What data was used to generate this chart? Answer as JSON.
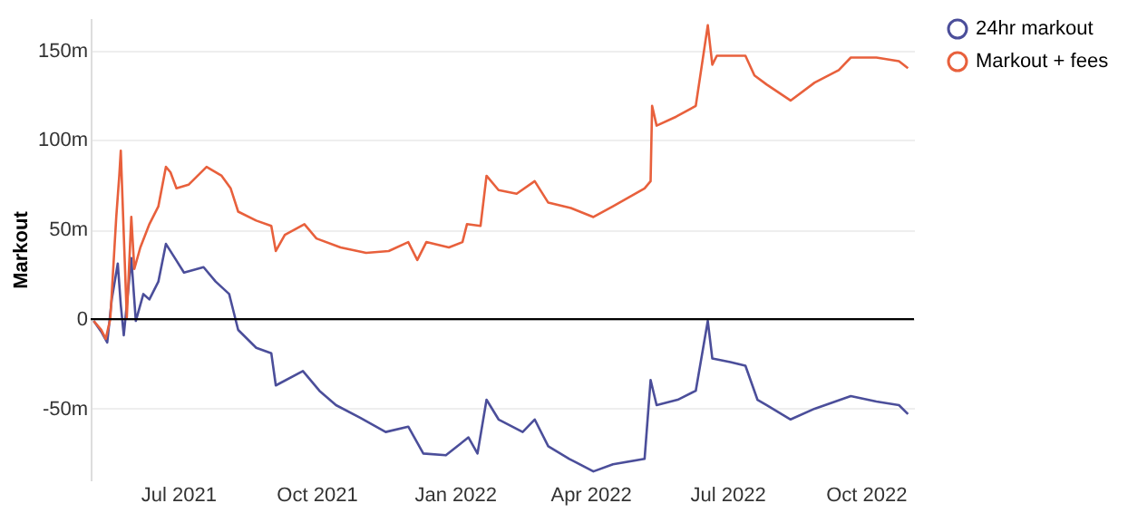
{
  "chart_data": {
    "type": "line",
    "ylabel": "Markout",
    "x": [
      "2021-05-06",
      "2021-05-11",
      "2021-05-15",
      "2021-05-18",
      "2021-05-22",
      "2021-05-24",
      "2021-05-26",
      "2021-05-31",
      "2021-06-03",
      "2021-06-08",
      "2021-06-12",
      "2021-06-18",
      "2021-06-23",
      "2021-06-29",
      "2021-07-05",
      "2021-07-18",
      "2021-07-26",
      "2021-08-04",
      "2021-08-10",
      "2021-08-22",
      "2021-09-01",
      "2021-09-04",
      "2021-09-22",
      "2021-10-03",
      "2021-10-14",
      "2021-10-30",
      "2021-11-16",
      "2021-12-01",
      "2021-12-11",
      "2021-12-26",
      "2022-01-10",
      "2022-01-16",
      "2022-01-22",
      "2022-01-30",
      "2022-02-15",
      "2022-02-23",
      "2022-03-04",
      "2022-03-18",
      "2022-04-03",
      "2022-04-16",
      "2022-05-07",
      "2022-05-11",
      "2022-05-15",
      "2022-05-29",
      "2022-06-10",
      "2022-06-18",
      "2022-06-21",
      "2022-07-03",
      "2022-07-13",
      "2022-07-21",
      "2022-07-27",
      "2022-08-12",
      "2022-08-28",
      "2022-09-21",
      "2022-10-08",
      "2022-10-23",
      "2022-10-29"
    ],
    "series": [
      {
        "name": "24hr markout",
        "color": "#4b4e9a",
        "values": [
          -1,
          -7,
          -13,
          11,
          31,
          8,
          -9,
          34,
          -1,
          14,
          11,
          21,
          42,
          34,
          26,
          29,
          21,
          14,
          -6,
          -16,
          -19,
          -37,
          -29,
          -40,
          -48,
          -55,
          -63,
          -60,
          -75,
          -76,
          -66,
          -75,
          -45,
          -56,
          -63,
          -56,
          -71,
          -78,
          -85,
          -81,
          -78,
          -34,
          -48,
          -45,
          -40,
          -1,
          -22,
          -24,
          -26,
          -45,
          -48,
          -56,
          -50,
          -43,
          -46,
          -48,
          -53
        ]
      },
      {
        "name": "Markout + fees",
        "color": "#e8603c",
        "x": [
          "2021-05-06",
          "2021-05-11",
          "2021-05-14",
          "2021-05-17",
          "2021-05-18",
          "2021-05-21",
          "2021-05-23",
          "2021-05-24",
          "2021-05-26",
          "2021-05-28",
          "2021-05-31",
          "2021-06-02",
          "2021-06-06",
          "2021-06-12",
          "2021-06-18",
          "2021-06-23",
          "2021-06-26",
          "2021-06-30",
          "2021-07-08",
          "2021-07-20",
          "2021-07-30",
          "2021-08-05",
          "2021-08-10",
          "2021-08-22",
          "2021-09-01",
          "2021-09-04",
          "2021-09-10",
          "2021-09-23",
          "2021-10-01",
          "2021-10-17",
          "2021-11-03",
          "2021-11-18",
          "2021-12-01",
          "2021-12-07",
          "2021-12-13",
          "2021-12-28",
          "2022-01-06",
          "2022-01-09",
          "2022-01-18",
          "2022-01-22",
          "2022-01-30",
          "2022-02-11",
          "2022-02-23",
          "2022-03-04",
          "2022-03-19",
          "2022-04-03",
          "2022-04-16",
          "2022-05-07",
          "2022-05-11",
          "2022-05-12",
          "2022-05-15",
          "2022-05-28",
          "2022-06-10",
          "2022-06-18",
          "2022-06-21",
          "2022-06-24",
          "2022-07-03",
          "2022-07-13",
          "2022-07-19",
          "2022-07-27",
          "2022-08-12",
          "2022-08-28",
          "2022-09-13",
          "2022-09-21",
          "2022-10-08",
          "2022-10-23",
          "2022-10-29"
        ],
        "values": [
          -1,
          -6,
          -11,
          0,
          14,
          57,
          80,
          94,
          47,
          1,
          57,
          28,
          40,
          53,
          63,
          85,
          82,
          73,
          75,
          85,
          80,
          73,
          60,
          55,
          52,
          38,
          47,
          53,
          45,
          40,
          37,
          38,
          43,
          33,
          43,
          40,
          43,
          53,
          52,
          80,
          72,
          70,
          77,
          65,
          62,
          57,
          63,
          73,
          77,
          119,
          108,
          113,
          119,
          164,
          142,
          147,
          147,
          147,
          136,
          131,
          122,
          132,
          139,
          146,
          146,
          144,
          140
        ]
      }
    ],
    "xlim": [
      "2021-05-04",
      "2022-11-02"
    ],
    "xticks": [
      {
        "value": "2021-07-01",
        "label": "Jul 2021"
      },
      {
        "value": "2021-10-01",
        "label": "Oct 2021"
      },
      {
        "value": "2022-01-01",
        "label": "Jan 2022"
      },
      {
        "value": "2022-04-01",
        "label": "Apr 2022"
      },
      {
        "value": "2022-07-01",
        "label": "Jul 2022"
      },
      {
        "value": "2022-10-01",
        "label": "Oct 2022"
      }
    ],
    "ylim": [
      -90,
      168
    ],
    "yticks": [
      {
        "value": -50,
        "label": "-50m"
      },
      0,
      {
        "value": 50,
        "label": "50m"
      },
      {
        "value": 100,
        "label": "100m"
      },
      {
        "value": 150,
        "label": "150m"
      }
    ],
    "ref_lines": [
      {
        "axis": "y",
        "value": 0,
        "color": "#000000"
      }
    ],
    "grid": "y",
    "legend": "right",
    "line_style": "solid",
    "marker": "none"
  }
}
